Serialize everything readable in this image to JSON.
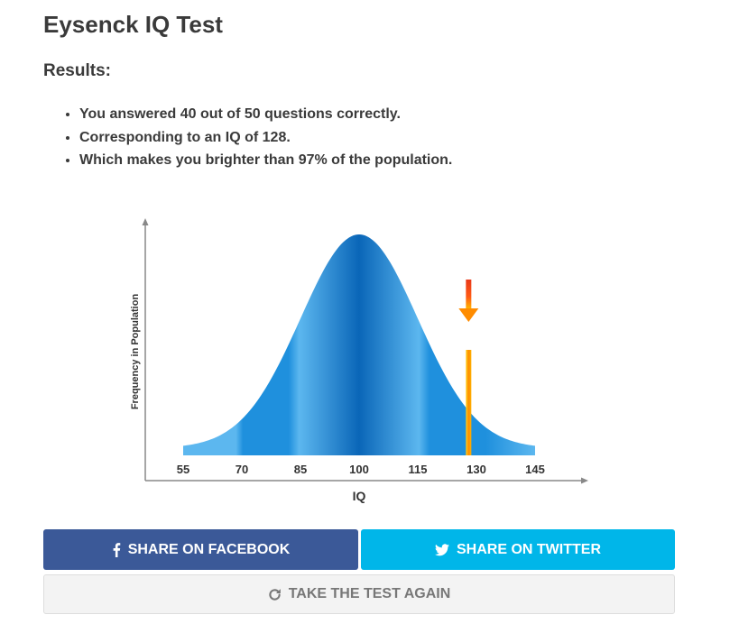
{
  "page": {
    "title": "Eysenck IQ Test",
    "results_heading": "Results:"
  },
  "results": {
    "items": [
      "You answered 40 out of 50 questions correctly.",
      "Corresponding to an IQ of 128.",
      "Which makes you brighter than 97% of the population."
    ]
  },
  "chart_data": {
    "type": "area",
    "title": "",
    "xlabel": "IQ",
    "ylabel": "Frequency in Population",
    "x_ticks": [
      "55",
      "70",
      "85",
      "100",
      "115",
      "130",
      "145"
    ],
    "xlim": [
      55,
      145
    ],
    "distribution": {
      "mean": 100,
      "sd": 15
    },
    "marker": {
      "iq": 128,
      "color": "#ff8c00",
      "arrow_color": "#e8391a"
    },
    "colors": {
      "curve_dark": "#0a66b8",
      "curve_mid": "#1f90dd",
      "curve_light": "#5cb7ef",
      "axis": "#888888"
    }
  },
  "buttons": {
    "facebook": {
      "label": "Share on Facebook",
      "icon": "facebook-icon",
      "color": "#3b5998"
    },
    "twitter": {
      "label": "Share on Twitter",
      "icon": "twitter-icon",
      "color": "#00b6e9"
    },
    "retake": {
      "label": "Take the test again",
      "icon": "refresh-icon"
    }
  }
}
